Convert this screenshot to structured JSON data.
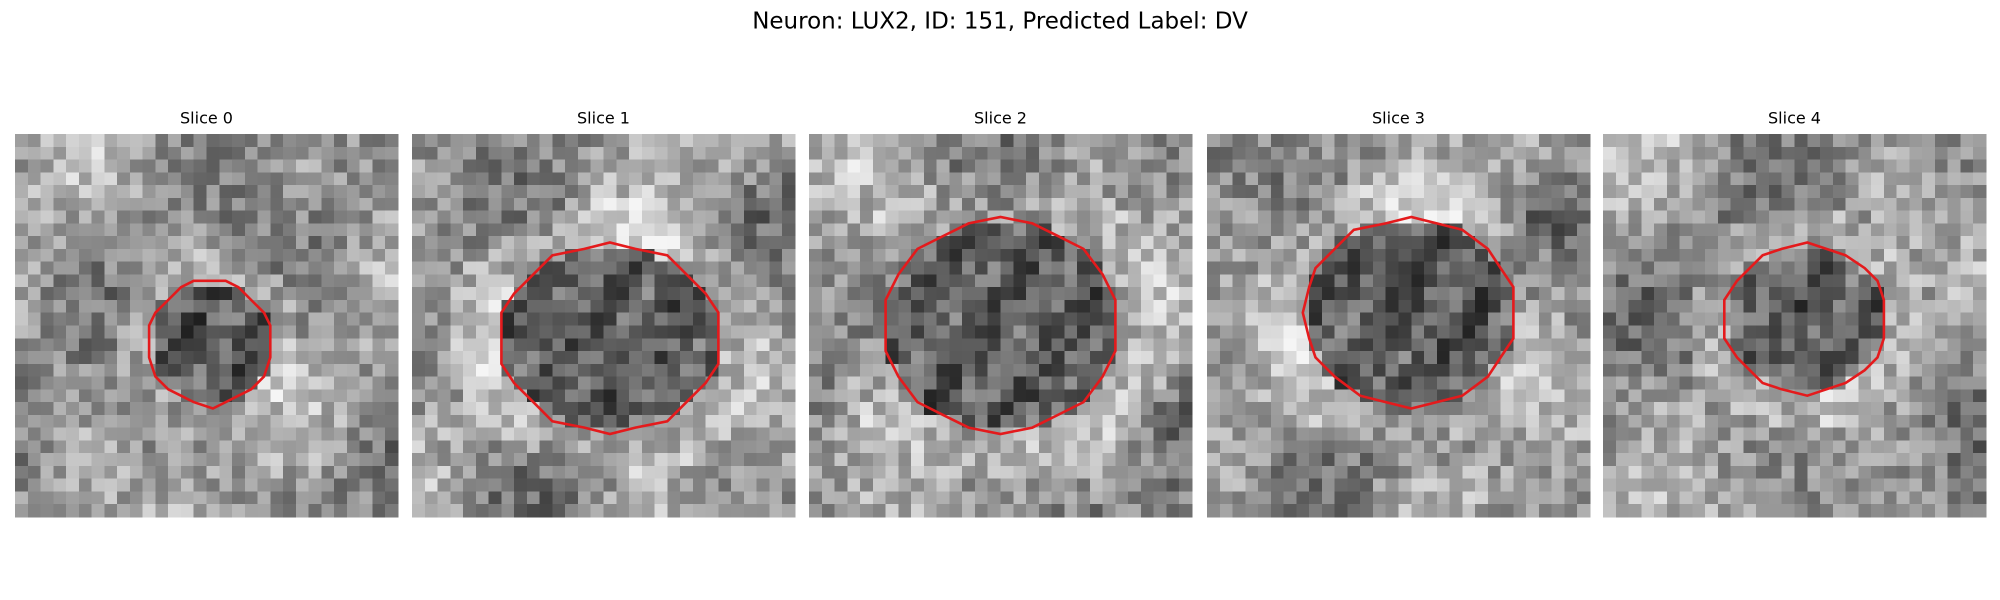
{
  "title": "Neuron: LUX2, ID: 151, Predicted Label: DV",
  "panels": [
    {
      "title": "Slice 0"
    },
    {
      "title": "Slice 1"
    },
    {
      "title": "Slice 2"
    },
    {
      "title": "Slice 3"
    },
    {
      "title": "Slice 4"
    }
  ]
}
